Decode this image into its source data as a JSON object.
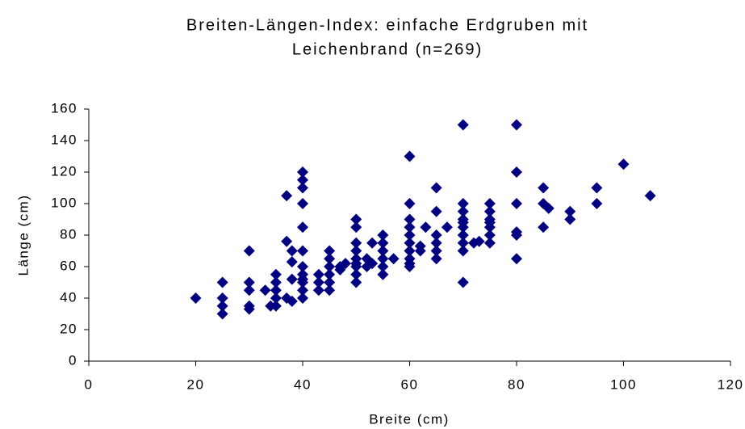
{
  "chart_data": {
    "type": "scatter",
    "title": [
      "Breiten-Längen-Index: einfache Erdgruben mit",
      "Leichenbrand (n=269)"
    ],
    "x_label": "Breite (cm)",
    "y_label": "Länge (cm)",
    "color": "#000080",
    "x": [
      20,
      25,
      25,
      25,
      25,
      30,
      30,
      30,
      30,
      30,
      33,
      34,
      35,
      35,
      35,
      35,
      35,
      37,
      37,
      37,
      38,
      38,
      38,
      38,
      40,
      40,
      40,
      40,
      40,
      40,
      40,
      40,
      40,
      40,
      40,
      40,
      43,
      43,
      43,
      45,
      45,
      45,
      45,
      45,
      45,
      47,
      47,
      48,
      50,
      50,
      50,
      50,
      50,
      50,
      50,
      50,
      50,
      52,
      52,
      53,
      53,
      55,
      55,
      55,
      55,
      55,
      55,
      57,
      60,
      60,
      60,
      60,
      60,
      60,
      60,
      60,
      60,
      60,
      62,
      62,
      63,
      65,
      65,
      65,
      65,
      65,
      65,
      67,
      70,
      70,
      70,
      70,
      70,
      70,
      70,
      70,
      70,
      70,
      72,
      73,
      75,
      75,
      75,
      75,
      75,
      75,
      75,
      80,
      80,
      80,
      80,
      80,
      80,
      85,
      85,
      85,
      86,
      90,
      90,
      95,
      95,
      100,
      105
    ],
    "values": [
      40,
      30,
      35,
      40,
      50,
      33,
      35,
      45,
      50,
      70,
      45,
      35,
      35,
      40,
      45,
      50,
      55,
      40,
      76,
      105,
      38,
      52,
      63,
      70,
      40,
      45,
      50,
      52,
      55,
      60,
      70,
      85,
      100,
      110,
      115,
      120,
      45,
      50,
      55,
      45,
      50,
      55,
      60,
      65,
      70,
      58,
      60,
      62,
      50,
      55,
      60,
      62,
      65,
      70,
      75,
      85,
      90,
      60,
      65,
      62,
      75,
      55,
      60,
      65,
      70,
      75,
      80,
      65,
      60,
      62,
      65,
      70,
      75,
      80,
      85,
      90,
      100,
      130,
      70,
      73,
      85,
      65,
      70,
      75,
      80,
      95,
      110,
      85,
      50,
      70,
      75,
      80,
      85,
      88,
      90,
      95,
      100,
      150,
      75,
      76,
      75,
      80,
      85,
      88,
      90,
      95,
      100,
      65,
      80,
      82,
      100,
      120,
      150,
      85,
      100,
      110,
      97,
      90,
      95,
      100,
      110,
      125,
      105
    ],
    "xlim": [
      0,
      120
    ],
    "xticks": [
      0,
      20,
      40,
      60,
      80,
      100,
      120
    ],
    "ylim": [
      0,
      160
    ],
    "yticks": [
      0,
      20,
      40,
      60,
      80,
      100,
      120,
      140,
      160
    ],
    "grid": false
  }
}
